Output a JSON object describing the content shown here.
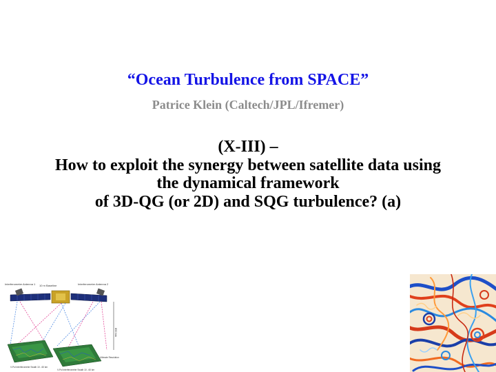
{
  "slide": {
    "title": "“Ocean Turbulence from SPACE”",
    "author": "Patrice Klein (Caltech/JPL/Ifremer)",
    "subtitle_lines": [
      "(X-III) –",
      "How to exploit the synergy between satellite data using",
      "the dynamical framework",
      "of 3D-QG (or 2D) and SQG turbulence? (a)"
    ]
  },
  "satellite_figure": {
    "labels": {
      "antenna_left": "Interferometer Antenna 1",
      "baseline": "10 m Baseline",
      "antenna_right": "Interferometer Antenna 2",
      "swath_left": "V-Pol Interferometer Swath 10 - 60 km",
      "swath_right": "V-Pol Interferometer Swath 10 - 60 km",
      "altitude": "890 km",
      "resolution": "Ultimate Resolution"
    }
  },
  "colors": {
    "title": "#1414e6",
    "author": "#8c8c8c",
    "subtitle": "#000000"
  }
}
